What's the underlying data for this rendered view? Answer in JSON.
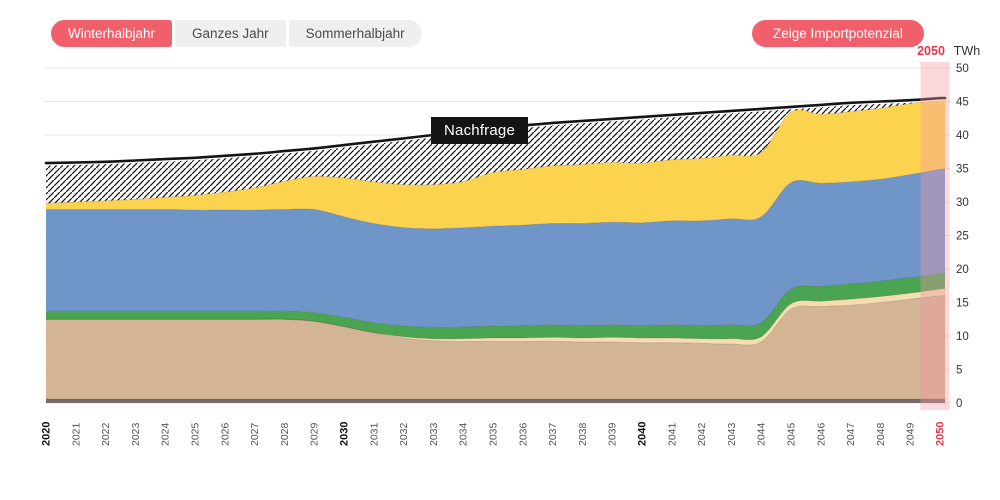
{
  "tabs": [
    {
      "label": "Winterhalbjahr",
      "active": true
    },
    {
      "label": "Ganzes Jahr",
      "active": false
    },
    {
      "label": "Sommerhalbjahr",
      "active": false
    }
  ],
  "import_button": {
    "label": "Zeige Importpotenzial"
  },
  "axis_header": {
    "year": "2050",
    "unit": "TWh"
  },
  "colors": {
    "accent_red": "#F25F6C",
    "tick_red": "#E2364D",
    "grid": "#E7E7E7",
    "axis_text": "#333333",
    "x_tick_text": "#555555",
    "highlight_band": "rgba(242,153,164,0.38)",
    "demand_line": "#141414",
    "hatch_stroke": "#1a1a1a"
  },
  "chart_data": {
    "type": "area",
    "stacked": true,
    "title": "",
    "xlabel": "",
    "ylabel": "TWh",
    "ylim": [
      0,
      50
    ],
    "y_ticks": [
      0,
      5,
      10,
      15,
      20,
      25,
      30,
      35,
      40,
      45,
      50
    ],
    "grid": true,
    "x": [
      2020,
      2021,
      2022,
      2023,
      2024,
      2025,
      2026,
      2027,
      2028,
      2029,
      2030,
      2031,
      2032,
      2033,
      2034,
      2035,
      2036,
      2037,
      2038,
      2039,
      2040,
      2041,
      2042,
      2043,
      2044,
      2045,
      2046,
      2047,
      2048,
      2049,
      2050
    ],
    "x_bold_ticks": [
      2020,
      2030,
      2040
    ],
    "x_red_tick": 2050,
    "highlight_year": 2050,
    "series": [
      {
        "name": "base-dark",
        "color": "#756B6E",
        "values": [
          0.6,
          0.6,
          0.6,
          0.6,
          0.6,
          0.6,
          0.6,
          0.6,
          0.6,
          0.6,
          0.6,
          0.6,
          0.6,
          0.6,
          0.6,
          0.6,
          0.6,
          0.6,
          0.6,
          0.6,
          0.6,
          0.6,
          0.6,
          0.6,
          0.6,
          0.6,
          0.6,
          0.6,
          0.6,
          0.6,
          0.6
        ]
      },
      {
        "name": "tan",
        "color": "#D3B494",
        "values": [
          11.9,
          11.9,
          11.9,
          11.9,
          11.9,
          11.9,
          11.9,
          11.9,
          11.9,
          11.6,
          10.8,
          9.9,
          9.1,
          8.7,
          8.6,
          8.6,
          8.6,
          8.6,
          8.5,
          8.5,
          8.4,
          8.4,
          8.3,
          8.2,
          8.5,
          13.4,
          13.8,
          14.0,
          14.4,
          14.9,
          15.4
        ]
      },
      {
        "name": "cream",
        "color": "#F6DCAE",
        "values": [
          0,
          0,
          0,
          0,
          0,
          0,
          0,
          0,
          0,
          0,
          0,
          0,
          0.2,
          0.3,
          0.4,
          0.5,
          0.5,
          0.6,
          0.6,
          0.7,
          0.7,
          0.7,
          0.7,
          0.8,
          0.8,
          0.8,
          0.8,
          0.9,
          0.9,
          0.9,
          1.0
        ]
      },
      {
        "name": "green",
        "color": "#4BA451",
        "values": [
          1.2,
          1.2,
          1.2,
          1.2,
          1.2,
          1.2,
          1.2,
          1.2,
          1.2,
          1.3,
          1.4,
          1.5,
          1.6,
          1.7,
          1.75,
          1.8,
          1.85,
          1.9,
          1.9,
          1.9,
          1.9,
          2.0,
          2.0,
          2.1,
          2.1,
          2.2,
          2.2,
          2.3,
          2.3,
          2.3,
          2.3
        ]
      },
      {
        "name": "blue",
        "color": "#7096C9",
        "values": [
          15.2,
          15.2,
          15.2,
          15.2,
          15.2,
          15.1,
          15.1,
          15.1,
          15.2,
          15.4,
          15.0,
          14.8,
          14.7,
          14.7,
          14.8,
          14.9,
          15.0,
          15.1,
          15.2,
          15.3,
          15.3,
          15.5,
          15.6,
          15.8,
          15.8,
          15.9,
          15.4,
          15.2,
          15.2,
          15.4,
          15.6
        ]
      },
      {
        "name": "yellow",
        "color": "#FCD34F",
        "values": [
          0.9,
          1.1,
          1.3,
          1.5,
          1.8,
          2.2,
          2.7,
          3.3,
          4.2,
          4.9,
          5.8,
          6.2,
          6.4,
          6.6,
          6.9,
          8.0,
          8.3,
          8.6,
          8.8,
          8.9,
          8.9,
          9.1,
          9.3,
          9.5,
          9.6,
          10.5,
          10.3,
          10.5,
          10.6,
          10.6,
          10.4
        ]
      }
    ],
    "demand_line": {
      "label": "Nachfrage",
      "color": "#141414",
      "values": [
        35.8,
        35.9,
        36.0,
        36.2,
        36.4,
        36.6,
        36.9,
        37.2,
        37.6,
        38.0,
        38.5,
        39.0,
        39.5,
        40.0,
        40.5,
        41.0,
        41.4,
        41.8,
        42.1,
        42.4,
        42.7,
        43.0,
        43.3,
        43.6,
        43.9,
        44.2,
        44.5,
        44.8,
        45.0,
        45.2,
        45.5
      ]
    },
    "gap_area": {
      "name": "nachfrage-gap-hatch",
      "fill": "diagonal-hatch"
    }
  }
}
